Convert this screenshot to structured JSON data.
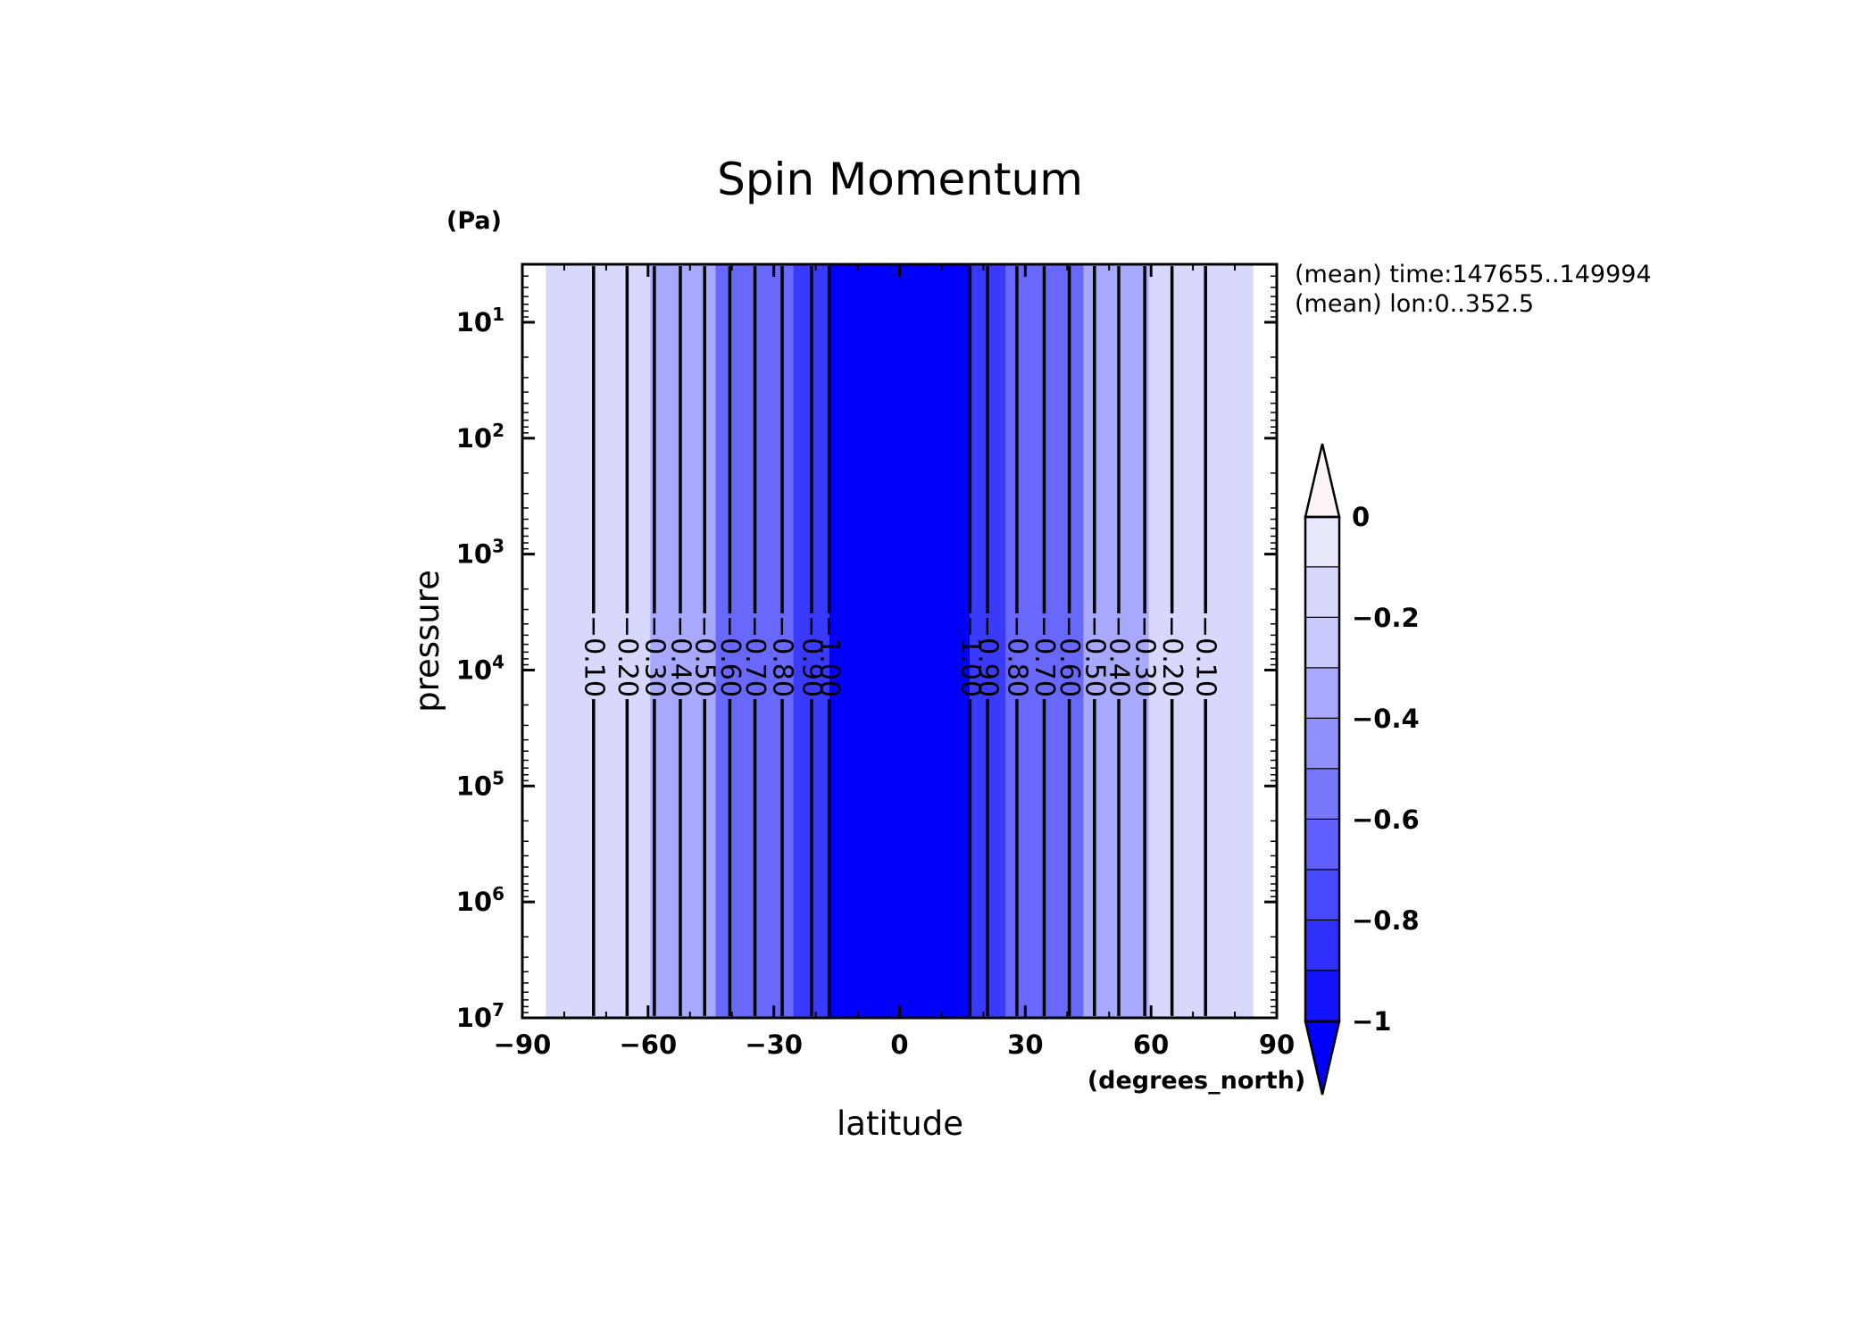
{
  "chart_data": {
    "type": "contour",
    "title": "Spin Momentum",
    "xlabel": "latitude",
    "xunits": "(degrees_north)",
    "ylabel": "pressure",
    "yunits": "(Pa)",
    "xlim": [
      -90,
      90
    ],
    "xticks": [
      -90,
      -60,
      -30,
      0,
      30,
      60,
      90
    ],
    "xtick_labels": [
      "−90",
      "−60",
      "−30",
      "0",
      "30",
      "60",
      "90"
    ],
    "yscale": "log",
    "ylim_exponent": [
      0.5,
      7
    ],
    "yticks": [
      {
        "base": "10",
        "exp": "1",
        "value": 10
      },
      {
        "base": "10",
        "exp": "2",
        "value": 100
      },
      {
        "base": "10",
        "exp": "3",
        "value": 1000
      },
      {
        "base": "10",
        "exp": "4",
        "value": 10000
      },
      {
        "base": "10",
        "exp": "5",
        "value": 100000
      },
      {
        "base": "10",
        "exp": "6",
        "value": 1000000
      },
      {
        "base": "10",
        "exp": "7",
        "value": 10000000
      }
    ],
    "data_lat_range": [
      -84.4,
      84.4
    ],
    "data_pressure_range": [
      3.16,
      10000000
    ],
    "annotations": [
      "(mean) time:147655..149994",
      "(mean) lon:0..352.5"
    ],
    "bands": [
      {
        "from": -84.4,
        "to": -59.5,
        "color": "#d8d8fc"
      },
      {
        "from": -59.5,
        "to": -43.9,
        "color": "#a8a8fc"
      },
      {
        "from": -43.9,
        "to": -25.4,
        "color": "#6868fc"
      },
      {
        "from": -25.4,
        "to": -16.8,
        "color": "#3a3afc"
      },
      {
        "from": -16.8,
        "to": 16.8,
        "color": "#0000fc"
      },
      {
        "from": 16.8,
        "to": 25.4,
        "color": "#3a3afc"
      },
      {
        "from": 25.4,
        "to": 43.9,
        "color": "#6868fc"
      },
      {
        "from": 43.9,
        "to": 59.5,
        "color": "#a8a8fc"
      },
      {
        "from": 59.5,
        "to": 84.4,
        "color": "#d8d8fc"
      }
    ],
    "contours_south": [
      {
        "lat": -73.0,
        "label": "−0.10"
      },
      {
        "lat": -65.0,
        "label": "−0.20"
      },
      {
        "lat": -58.5,
        "label": "−0.30"
      },
      {
        "lat": -52.3,
        "label": "−0.40"
      },
      {
        "lat": -46.5,
        "label": "−0.50"
      },
      {
        "lat": -40.5,
        "label": "−0.60"
      },
      {
        "lat": -34.5,
        "label": "−0.70"
      },
      {
        "lat": -28.0,
        "label": "−0.80"
      },
      {
        "lat": -21.0,
        "label": "−0.90"
      },
      {
        "lat": -16.8,
        "label": "−1.00"
      }
    ],
    "contours_north": [
      {
        "lat": 16.8,
        "label": "−1.00"
      },
      {
        "lat": 21.0,
        "label": "−0.90"
      },
      {
        "lat": 28.0,
        "label": "−0.80"
      },
      {
        "lat": 34.5,
        "label": "−0.70"
      },
      {
        "lat": 40.5,
        "label": "−0.60"
      },
      {
        "lat": 46.5,
        "label": "−0.50"
      },
      {
        "lat": 52.3,
        "label": "−0.40"
      },
      {
        "lat": 58.5,
        "label": "−0.30"
      },
      {
        "lat": 65.0,
        "label": "−0.20"
      },
      {
        "lat": 73.0,
        "label": "−0.10"
      }
    ],
    "colorbar": {
      "levels": [
        0,
        -0.1,
        -0.2,
        -0.3,
        -0.4,
        -0.5,
        -0.6,
        -0.7,
        -0.8,
        -0.9,
        -1.0
      ],
      "tick_labels": [
        {
          "value": 0,
          "label": "0"
        },
        {
          "value": -0.2,
          "label": "−0.2"
        },
        {
          "value": -0.4,
          "label": "−0.4"
        },
        {
          "value": -0.6,
          "label": "−0.6"
        },
        {
          "value": -0.8,
          "label": "−0.8"
        },
        {
          "value": -1.0,
          "label": "−1"
        }
      ],
      "colors": [
        "#e8e8fc",
        "#d8d8fc",
        "#c8c8fc",
        "#a8a8fc",
        "#9090fc",
        "#7878fc",
        "#6060fc",
        "#4848fc",
        "#3030fc",
        "#1414fc"
      ],
      "over_color": "#fcf4f4",
      "under_color": "#0000fc"
    }
  }
}
